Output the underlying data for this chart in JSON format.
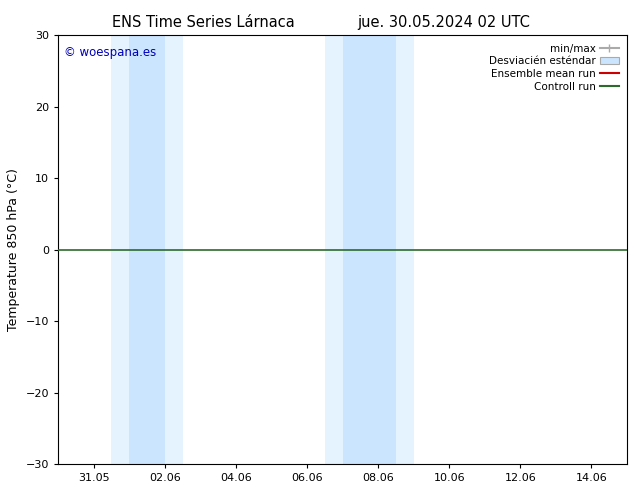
{
  "title_left": "ENS Time Series Lárnaca",
  "title_right": "jue. 30.05.2024 02 UTC",
  "ylabel": "Temperature 850 hPa (°C)",
  "ylim": [
    -30,
    30
  ],
  "yticks": [
    -30,
    -20,
    -10,
    0,
    10,
    20,
    30
  ],
  "xlim": [
    0,
    16
  ],
  "xtick_positions": [
    1,
    3,
    5,
    7,
    9,
    11,
    13,
    15
  ],
  "xtick_labels": [
    "31.05",
    "02.06",
    "04.06",
    "06.06",
    "08.06",
    "10.06",
    "12.06",
    "14.06"
  ],
  "shaded_regions": [
    {
      "x_start": 1.5,
      "x_end": 2.0,
      "color": "#daeeff",
      "alpha": 0.7
    },
    {
      "x_start": 2.0,
      "x_end": 3.0,
      "color": "#cce5ff",
      "alpha": 1.0
    },
    {
      "x_start": 3.0,
      "x_end": 3.5,
      "color": "#daeeff",
      "alpha": 0.7
    },
    {
      "x_start": 7.5,
      "x_end": 8.0,
      "color": "#daeeff",
      "alpha": 0.7
    },
    {
      "x_start": 8.0,
      "x_end": 9.5,
      "color": "#cce5ff",
      "alpha": 1.0
    },
    {
      "x_start": 9.5,
      "x_end": 10.0,
      "color": "#daeeff",
      "alpha": 0.7
    }
  ],
  "hline_y": 0,
  "hline_color": "#2d6a2d",
  "hline_lw": 1.2,
  "ensemble_mean_color": "#cc0000",
  "control_run_color": "#2d6a2d",
  "minmax_color": "#aaaaaa",
  "stddev_color": "#cce5ff",
  "stddev_edge_color": "#aaaaaa",
  "watermark_text": "© woespana.es",
  "watermark_color": "#0000bb",
  "bg_color": "#ffffff",
  "plot_bg_color": "#ffffff",
  "tick_fontsize": 8,
  "label_fontsize": 9,
  "title_fontsize": 10.5,
  "legend_fontsize": 7.5
}
